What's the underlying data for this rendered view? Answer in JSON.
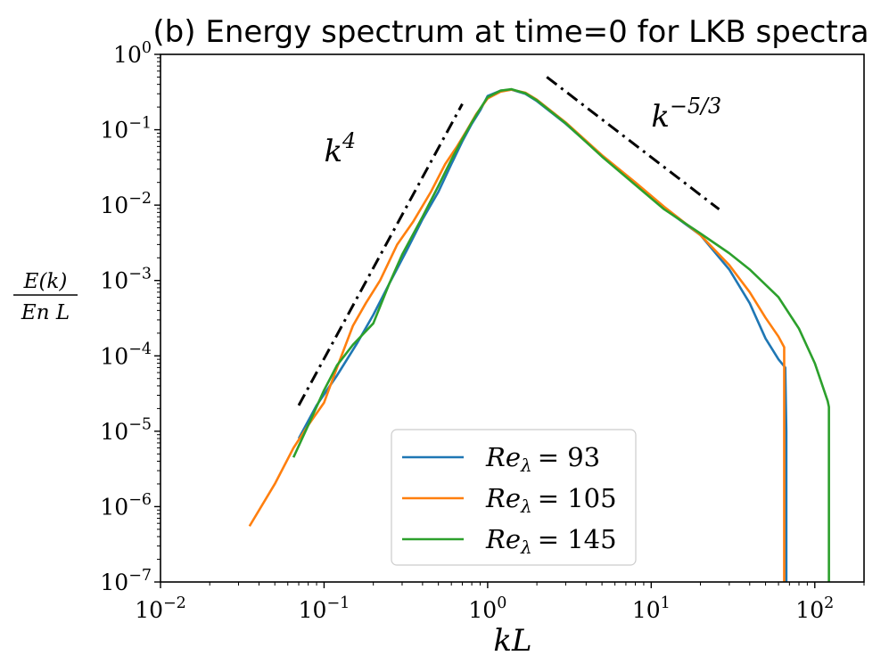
{
  "chart_data": {
    "type": "line",
    "title": "(b) Energy spectrum at time=0 for LKB spectra",
    "xlabel": "kL",
    "ylabel": {
      "numerator": "E(k)",
      "denominator": "En L"
    },
    "xscale": "log",
    "yscale": "log",
    "xlim": [
      0.01,
      200
    ],
    "ylim": [
      1e-07,
      1
    ],
    "xticks": [
      {
        "value": 0.01,
        "base": "10",
        "exp": "−2"
      },
      {
        "value": 0.1,
        "base": "10",
        "exp": "−1"
      },
      {
        "value": 1,
        "base": "10",
        "exp": "0"
      },
      {
        "value": 10,
        "base": "10",
        "exp": "1"
      },
      {
        "value": 100,
        "base": "10",
        "exp": "2"
      }
    ],
    "yticks": [
      {
        "value": 1e-07,
        "base": "10",
        "exp": "−7"
      },
      {
        "value": 1e-06,
        "base": "10",
        "exp": "−6"
      },
      {
        "value": 1e-05,
        "base": "10",
        "exp": "−5"
      },
      {
        "value": 0.0001,
        "base": "10",
        "exp": "−4"
      },
      {
        "value": 0.001,
        "base": "10",
        "exp": "−3"
      },
      {
        "value": 0.01,
        "base": "10",
        "exp": "−2"
      },
      {
        "value": 0.1,
        "base": "10",
        "exp": "−1"
      },
      {
        "value": 1,
        "base": "10",
        "exp": "0"
      }
    ],
    "grid": false,
    "legend_position": "bottom-center",
    "series": [
      {
        "name": "Re_λ = 93",
        "label_main": "Re",
        "label_sub": "λ",
        "label_value": "= 93",
        "color": "#1f77b4",
        "x": [
          0.07,
          0.09,
          0.12,
          0.16,
          0.2,
          0.25,
          0.32,
          0.4,
          0.5,
          0.6,
          0.7,
          0.8,
          0.9,
          1.0,
          1.2,
          1.4,
          1.7,
          2.0,
          3.0,
          5.0,
          8.0,
          12.0,
          20.0,
          30.0,
          40.0,
          50.0,
          60.0,
          66.0,
          67.0,
          67.0
        ],
        "y": [
          8e-06,
          2.2e-05,
          5.5e-05,
          0.00015,
          0.00035,
          0.0009,
          0.0025,
          0.0065,
          0.015,
          0.035,
          0.07,
          0.12,
          0.18,
          0.28,
          0.33,
          0.34,
          0.3,
          0.24,
          0.12,
          0.045,
          0.019,
          0.009,
          0.004,
          0.0014,
          0.0005,
          0.00017,
          9e-05,
          7e-05,
          1e-05,
          1e-07
        ]
      },
      {
        "name": "Re_λ = 105",
        "label_main": "Re",
        "label_sub": "λ",
        "label_value": "= 105",
        "color": "#ff7f0e",
        "x": [
          0.035,
          0.05,
          0.065,
          0.08,
          0.1,
          0.12,
          0.15,
          0.18,
          0.22,
          0.28,
          0.35,
          0.45,
          0.55,
          0.65,
          0.75,
          0.85,
          1.0,
          1.2,
          1.4,
          1.7,
          2.0,
          3.0,
          5.0,
          8.0,
          12.0,
          20.0,
          30.0,
          40.0,
          50.0,
          60.0,
          65.0,
          65.0,
          65.0
        ],
        "y": [
          5.5e-07,
          2e-06,
          6e-06,
          1.2e-05,
          2.4e-05,
          7e-05,
          0.00025,
          0.0005,
          0.001,
          0.003,
          0.006,
          0.015,
          0.035,
          0.06,
          0.1,
          0.16,
          0.26,
          0.32,
          0.34,
          0.31,
          0.25,
          0.125,
          0.046,
          0.02,
          0.0095,
          0.004,
          0.0016,
          0.0007,
          0.00032,
          0.00018,
          0.00013,
          5e-05,
          1e-07
        ]
      },
      {
        "name": "Re_λ = 145",
        "label_main": "Re",
        "label_sub": "λ",
        "label_value": "= 145",
        "color": "#2ca02c",
        "x": [
          0.065,
          0.08,
          0.1,
          0.12,
          0.15,
          0.2,
          0.25,
          0.3,
          0.4,
          0.5,
          0.6,
          0.7,
          0.8,
          0.9,
          1.0,
          1.2,
          1.4,
          1.7,
          2.0,
          3.0,
          5.0,
          8.0,
          12.0,
          20.0,
          30.0,
          40.0,
          60.0,
          80.0,
          100.0,
          120.0,
          122.0,
          122.0
        ],
        "y": [
          4.5e-06,
          1.2e-05,
          3.5e-05,
          7.5e-05,
          0.00014,
          0.00027,
          0.0009,
          0.0022,
          0.007,
          0.018,
          0.04,
          0.075,
          0.125,
          0.19,
          0.27,
          0.33,
          0.345,
          0.305,
          0.245,
          0.122,
          0.044,
          0.0185,
          0.0088,
          0.0042,
          0.0023,
          0.0014,
          0.0006,
          0.00023,
          8e-05,
          2.5e-05,
          2.1e-05,
          1e-07
        ]
      }
    ],
    "reference_lines": [
      {
        "name": "k^4 slope",
        "label_base": "k",
        "label_exp": "4",
        "x": [
          0.07,
          0.7
        ],
        "y": [
          2.2e-05,
          0.22
        ],
        "label_at": [
          0.1,
          0.038
        ],
        "color": "#000000",
        "style": "dash-dot"
      },
      {
        "name": "k^-5/3 slope",
        "label_base": "k",
        "label_exp": "−5/3",
        "x": [
          2.3,
          26
        ],
        "y": [
          0.5,
          0.0088
        ],
        "label_at": [
          10,
          0.11
        ],
        "color": "#000000",
        "style": "dash-dot"
      }
    ]
  }
}
